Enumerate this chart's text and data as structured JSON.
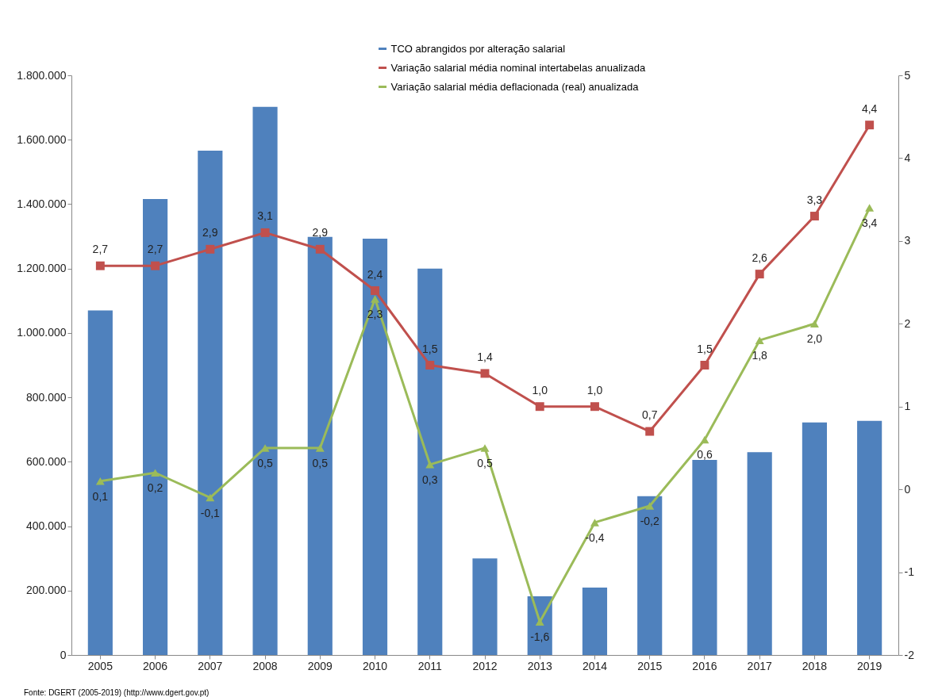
{
  "chart_data": {
    "type": "bar",
    "categories": [
      "2005",
      "2006",
      "2007",
      "2008",
      "2009",
      "2010",
      "2011",
      "2012",
      "2013",
      "2014",
      "2015",
      "2016",
      "2017",
      "2018",
      "2019"
    ],
    "series": [
      {
        "name": "TCO abrangidos por alteração salarial",
        "color": "#4f81bd",
        "values": [
          1070000,
          1416000,
          1566000,
          1702000,
          1298000,
          1293000,
          1200000,
          300000,
          182000,
          209000,
          493000,
          606000,
          630000,
          722000,
          727000
        ]
      },
      {
        "name": "Variação salarial média nominal intertabelas anualizada",
        "type": "line",
        "axis": "y2",
        "color": "#c0504d",
        "marker": "square",
        "values": [
          2.7,
          2.7,
          2.9,
          3.1,
          2.9,
          2.4,
          1.5,
          1.4,
          1.0,
          1.0,
          0.7,
          1.5,
          2.6,
          3.3,
          4.4
        ],
        "value_labels": [
          "2,7",
          "2,7",
          "2,9",
          "3,1",
          "2,9",
          "2,4",
          "1,5",
          "1,4",
          "1,0",
          "1,0",
          "0,7",
          "1,5",
          "2,6",
          "3,3",
          "4,4"
        ]
      },
      {
        "name": "Variação salarial média deflacionada (real) anualizada",
        "type": "line",
        "axis": "y2",
        "color": "#9bbb59",
        "marker": "triangle",
        "values": [
          0.1,
          0.2,
          -0.1,
          0.5,
          0.5,
          2.3,
          0.3,
          0.5,
          -1.6,
          -0.4,
          -0.2,
          0.6,
          1.8,
          2.0,
          3.4
        ],
        "value_labels": [
          "0,1",
          "0,2",
          "-0,1",
          "0,5",
          "0,5",
          "2,3",
          "0,3",
          "0,5",
          "-1,6",
          "-0,4",
          "-0,2",
          "0,6",
          "1,8",
          "2,0",
          "3,4"
        ]
      }
    ],
    "ylim": [
      0,
      1800000
    ],
    "yticks": [
      {
        "value": 0,
        "label": "0"
      },
      {
        "value": 200000,
        "label": "200.000"
      },
      {
        "value": 400000,
        "label": "400.000"
      },
      {
        "value": 600000,
        "label": "600.000"
      },
      {
        "value": 800000,
        "label": "800.000"
      },
      {
        "value": 1000000,
        "label": "1.000.000"
      },
      {
        "value": 1200000,
        "label": "1.200.000"
      },
      {
        "value": 1400000,
        "label": "1.400.000"
      },
      {
        "value": 1600000,
        "label": "1.600.000"
      },
      {
        "value": 1800000,
        "label": "1.800.000"
      }
    ],
    "y2lim": [
      -2,
      5
    ],
    "y2ticks": [
      -2,
      -1,
      0,
      1,
      2,
      3,
      4,
      5
    ],
    "legend": "top right",
    "annotations": [
      "Fonte: DGERT (2005-2019) (http://www.dgert.gov.pt)"
    ]
  }
}
